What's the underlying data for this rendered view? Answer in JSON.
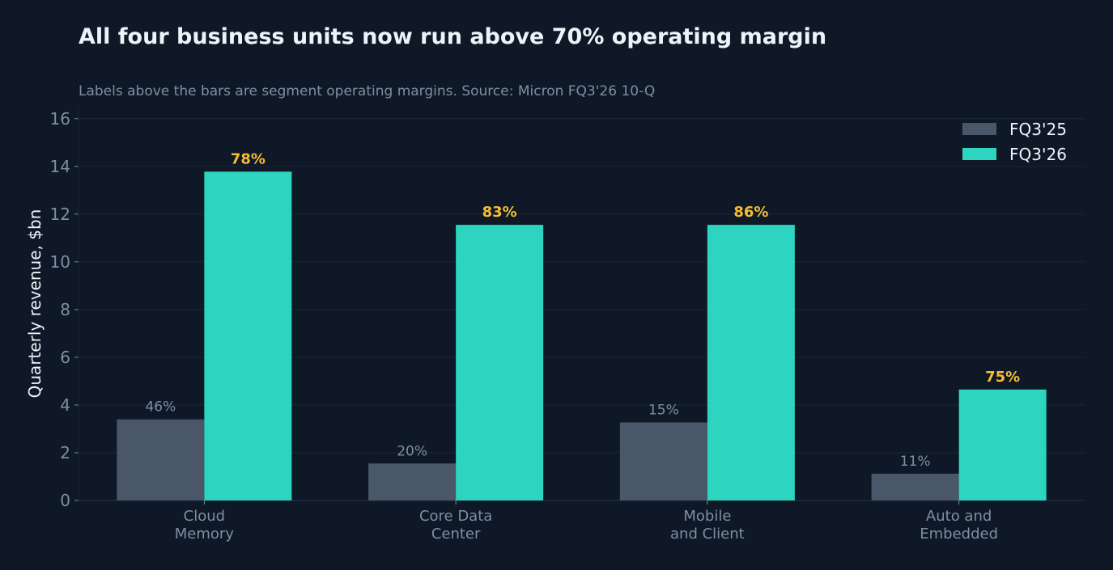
{
  "chart_data": {
    "type": "bar",
    "title": "All four business units now run above 70% operating margin",
    "subtitle": "Labels above the bars are segment operating margins. Source: Micron FQ3'26 10-Q",
    "ylabel": "Quarterly revenue, $bn",
    "xlabel": "",
    "ylim": [
      0,
      16.5
    ],
    "yticks": [
      0,
      2,
      4,
      6,
      8,
      10,
      12,
      14,
      16
    ],
    "grid": true,
    "legend_position": "top-right",
    "categories": [
      [
        "Cloud",
        "Memory"
      ],
      [
        "Core Data",
        "Center"
      ],
      [
        "Mobile",
        "and Client"
      ],
      [
        "Auto and",
        "Embedded"
      ]
    ],
    "series": [
      {
        "name": "FQ3'25",
        "color": "#4a5768",
        "values": [
          3.4,
          1.55,
          3.27,
          1.12
        ],
        "labels": [
          "46%",
          "20%",
          "15%",
          "11%"
        ]
      },
      {
        "name": "FQ3'26",
        "color": "#2dd4bf",
        "values": [
          13.78,
          11.55,
          11.55,
          4.65
        ],
        "labels": [
          "78%",
          "83%",
          "86%",
          "75%"
        ]
      }
    ]
  }
}
